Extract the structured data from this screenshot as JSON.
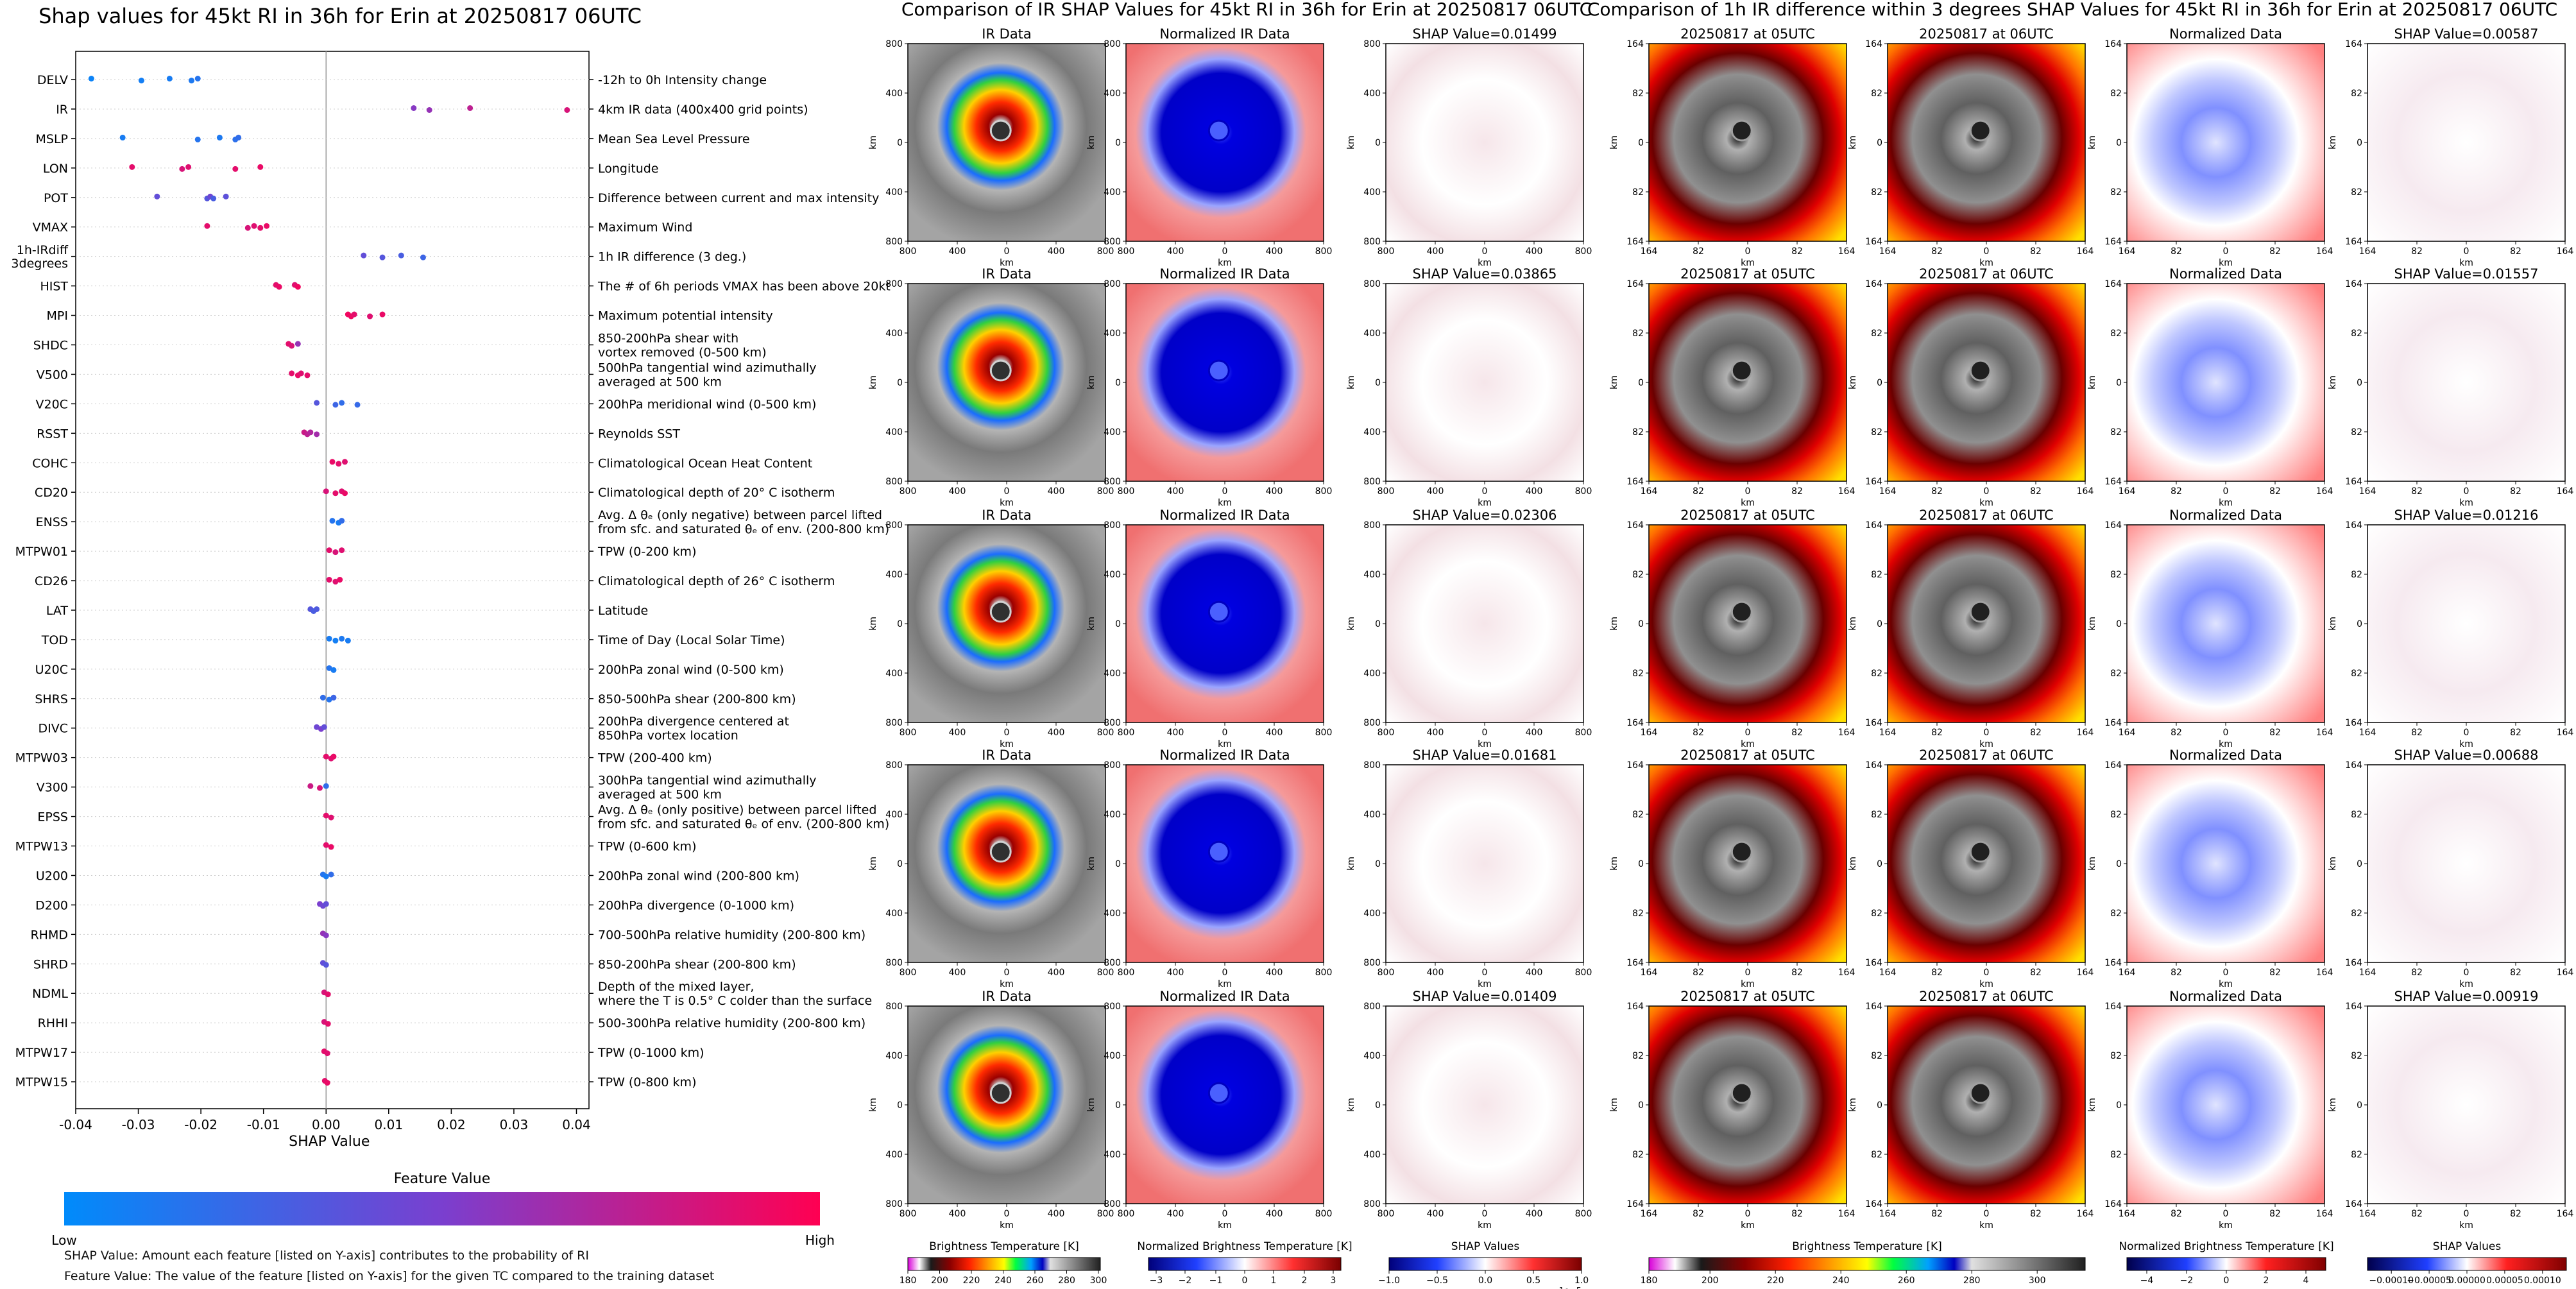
{
  "shap_summary": {
    "title": "Shap values for 45kt RI in 36h for Erin at 20250817 06UTC",
    "xlabel": "SHAP Value",
    "x_ticks": [
      "-0.04",
      "-0.03",
      "-0.02",
      "-0.01",
      "0.00",
      "0.01",
      "0.02",
      "0.03",
      "0.04"
    ],
    "xlim": [
      -0.04,
      0.042
    ],
    "colorbar": {
      "title": "Feature Value",
      "low_label": "Low",
      "high_label": "High",
      "low_color": "#008bfb",
      "high_color": "#ff0052"
    },
    "notes": [
      "SHAP Value: Amount each feature [listed on Y-axis] contributes to the probability of RI",
      "Feature Value: The value of the feature [listed on Y-axis] for the given TC compared to the training dataset"
    ]
  },
  "chart_data": {
    "type": "scatter",
    "title": "Shap values for 45kt RI in 36h for Erin at 20250817 06UTC",
    "xlabel": "SHAP Value",
    "xlim": [
      -0.04,
      0.042
    ],
    "features": [
      {
        "name": "DELV",
        "desc": [
          "-12h to 0h Intensity change"
        ],
        "x": [
          -0.0375,
          -0.0295,
          -0.025,
          -0.0215,
          -0.0205
        ],
        "fv": [
          0.05,
          0.08,
          0.1,
          0.12,
          0.15
        ]
      },
      {
        "name": "IR",
        "desc": [
          "4km IR data (400x400 grid points)"
        ],
        "x": [
          0.014,
          0.0165,
          0.023,
          0.0385
        ],
        "fv": [
          0.55,
          0.6,
          0.75,
          0.85
        ]
      },
      {
        "name": "MSLP",
        "desc": [
          "Mean Sea Level Pressure"
        ],
        "x": [
          -0.0325,
          -0.0205,
          -0.017,
          -0.0145,
          -0.014
        ],
        "fv": [
          0.1,
          0.15,
          0.12,
          0.18,
          0.2
        ]
      },
      {
        "name": "LON",
        "desc": [
          "Longitude"
        ],
        "x": [
          -0.031,
          -0.023,
          -0.022,
          -0.0145,
          -0.0105
        ],
        "fv": [
          0.9,
          0.85,
          0.88,
          0.9,
          0.92
        ]
      },
      {
        "name": "POT",
        "desc": [
          "Difference between current and max intensity"
        ],
        "x": [
          -0.027,
          -0.019,
          -0.0185,
          -0.018,
          -0.016
        ],
        "fv": [
          0.4,
          0.35,
          0.45,
          0.3,
          0.38
        ]
      },
      {
        "name": "VMAX",
        "desc": [
          "Maximum Wind"
        ],
        "x": [
          -0.019,
          -0.0125,
          -0.0115,
          -0.0105,
          -0.0095
        ],
        "fv": [
          0.9,
          0.85,
          0.88,
          0.9,
          0.92
        ]
      },
      {
        "name": "1h-IRdiff\n3degrees",
        "desc": [
          "1h IR difference (3 deg.)"
        ],
        "x": [
          0.006,
          0.009,
          0.012,
          0.0155
        ],
        "fv": [
          0.4,
          0.35,
          0.3,
          0.25
        ]
      },
      {
        "name": "HIST",
        "desc": [
          "The # of 6h periods VMAX has been above 20kt"
        ],
        "x": [
          -0.008,
          -0.0075,
          -0.005,
          -0.0045
        ],
        "fv": [
          0.9,
          0.92,
          0.88,
          0.95
        ]
      },
      {
        "name": "MPI",
        "desc": [
          "Maximum potential intensity"
        ],
        "x": [
          0.0035,
          0.004,
          0.0045,
          0.007,
          0.009
        ],
        "fv": [
          0.95,
          0.93,
          0.9,
          0.88,
          0.92
        ]
      },
      {
        "name": "SHDC",
        "desc": [
          "850-200hPa shear with",
          "vortex removed (0-500 km)"
        ],
        "x": [
          -0.006,
          -0.0055,
          -0.0045
        ],
        "fv": [
          0.9,
          0.85,
          0.6
        ]
      },
      {
        "name": "V500",
        "desc": [
          "500hPa tangential wind azimuthally",
          "averaged at 500 km"
        ],
        "x": [
          -0.0055,
          -0.0045,
          -0.004,
          -0.003
        ],
        "fv": [
          0.9,
          0.92,
          0.88,
          0.9
        ]
      },
      {
        "name": "V20C",
        "desc": [
          "200hPa meridional wind (0-500 km)"
        ],
        "x": [
          -0.0015,
          0.0015,
          0.0025,
          0.005
        ],
        "fv": [
          0.35,
          0.25,
          0.2,
          0.22
        ]
      },
      {
        "name": "RSST",
        "desc": [
          "Reynolds SST"
        ],
        "x": [
          -0.0035,
          -0.003,
          -0.0025,
          -0.0015
        ],
        "fv": [
          0.8,
          0.75,
          0.7,
          0.65
        ]
      },
      {
        "name": "COHC",
        "desc": [
          "Climatological Ocean Heat Content"
        ],
        "x": [
          0.001,
          0.002,
          0.003
        ],
        "fv": [
          0.92,
          0.9,
          0.88
        ]
      },
      {
        "name": "CD20",
        "desc": [
          "Climatological depth of 20° C isotherm"
        ],
        "x": [
          0.0,
          0.0015,
          0.0025,
          0.003
        ],
        "fv": [
          0.85,
          0.9,
          0.88,
          0.92
        ]
      },
      {
        "name": "ENSS",
        "desc": [
          "Avg. Δ θₑ (only negative) between parcel lifted",
          "from sfc. and saturated θₑ of env. (200-800 km)"
        ],
        "x": [
          0.001,
          0.002,
          0.0025
        ],
        "fv": [
          0.15,
          0.1,
          0.2
        ]
      },
      {
        "name": "MTPW01",
        "desc": [
          "TPW (0-200 km)"
        ],
        "x": [
          0.0005,
          0.0015,
          0.0025
        ],
        "fv": [
          0.9,
          0.85,
          0.88
        ]
      },
      {
        "name": "CD26",
        "desc": [
          "Climatological depth of 26° C isotherm"
        ],
        "x": [
          0.0005,
          0.0015,
          0.0022
        ],
        "fv": [
          0.9,
          0.88,
          0.92
        ]
      },
      {
        "name": "LAT",
        "desc": [
          "Latitude"
        ],
        "x": [
          -0.0025,
          -0.002,
          -0.0015
        ],
        "fv": [
          0.35,
          0.3,
          0.32
        ]
      },
      {
        "name": "TOD",
        "desc": [
          "Time of Day (Local Solar Time)"
        ],
        "x": [
          0.0005,
          0.0015,
          0.0025,
          0.0035
        ],
        "fv": [
          0.1,
          0.08,
          0.12,
          0.1
        ]
      },
      {
        "name": "U20C",
        "desc": [
          "200hPa zonal wind (0-500 km)"
        ],
        "x": [
          0.0005,
          0.0012
        ],
        "fv": [
          0.15,
          0.1
        ]
      },
      {
        "name": "SHRS",
        "desc": [
          "850-500hPa shear (200-800 km)"
        ],
        "x": [
          -0.0005,
          0.0005,
          0.0012
        ],
        "fv": [
          0.2,
          0.15,
          0.25
        ]
      },
      {
        "name": "DIVC",
        "desc": [
          "200hPa divergence centered at",
          "850hPa vortex location"
        ],
        "x": [
          -0.0015,
          -0.0008,
          -0.0003
        ],
        "fv": [
          0.45,
          0.5,
          0.4
        ]
      },
      {
        "name": "MTPW03",
        "desc": [
          "TPW (200-400 km)"
        ],
        "x": [
          0.0,
          0.0008,
          0.0012
        ],
        "fv": [
          0.9,
          0.88,
          0.92
        ]
      },
      {
        "name": "V300",
        "desc": [
          "300hPa tangential wind azimuthally",
          "averaged at 500 km"
        ],
        "x": [
          -0.0025,
          -0.001,
          0.0
        ],
        "fv": [
          0.8,
          0.85,
          0.2
        ]
      },
      {
        "name": "EPSS",
        "desc": [
          "Avg. Δ θₑ (only positive) between parcel lifted",
          "from sfc. and saturated θₑ of env. (200-800 km)"
        ],
        "x": [
          0.0,
          0.0008
        ],
        "fv": [
          0.9,
          0.88
        ]
      },
      {
        "name": "MTPW13",
        "desc": [
          "TPW (0-600 km)"
        ],
        "x": [
          0.0,
          0.0008
        ],
        "fv": [
          0.9,
          0.92
        ]
      },
      {
        "name": "U200",
        "desc": [
          "200hPa zonal wind (200-800 km)"
        ],
        "x": [
          -0.0005,
          0.0,
          0.0008
        ],
        "fv": [
          0.15,
          0.1,
          0.2
        ]
      },
      {
        "name": "D200",
        "desc": [
          "200hPa divergence (0-1000 km)"
        ],
        "x": [
          -0.001,
          -0.0005,
          0.0
        ],
        "fv": [
          0.5,
          0.45,
          0.4
        ]
      },
      {
        "name": "RHMD",
        "desc": [
          "700-500hPa relative humidity (200-800 km)"
        ],
        "x": [
          -0.0005,
          0.0
        ],
        "fv": [
          0.6,
          0.55
        ]
      },
      {
        "name": "SHRD",
        "desc": [
          "850-200hPa shear (200-800 km)"
        ],
        "x": [
          -0.0005,
          0.0
        ],
        "fv": [
          0.4,
          0.35
        ]
      },
      {
        "name": "NDML",
        "desc": [
          "Depth of the mixed layer,",
          "where the T is 0.5° C colder than the surface"
        ],
        "x": [
          -0.0003,
          0.0003
        ],
        "fv": [
          0.85,
          0.9
        ]
      },
      {
        "name": "RHHI",
        "desc": [
          "500-300hPa relative humidity (200-800 km)"
        ],
        "x": [
          -0.0003,
          0.0003
        ],
        "fv": [
          0.85,
          0.9
        ]
      },
      {
        "name": "MTPW17",
        "desc": [
          "TPW (0-1000 km)"
        ],
        "x": [
          -0.0003,
          0.0002
        ],
        "fv": [
          0.9,
          0.88
        ]
      },
      {
        "name": "MTPW15",
        "desc": [
          "TPW (0-800 km)"
        ],
        "x": [
          -0.0002,
          0.0002
        ],
        "fv": [
          0.9,
          0.92
        ]
      }
    ]
  },
  "ir_panel": {
    "title": "Comparison of IR SHAP Values for 45kt RI in 36h for Erin at 20250817 06UTC",
    "column_titles": [
      "IR Data",
      "Normalized IR Data"
    ],
    "shap_titles": [
      "SHAP Value=0.01499",
      "SHAP Value=0.03865",
      "SHAP Value=0.02306",
      "SHAP Value=0.01681",
      "SHAP Value=0.01409"
    ],
    "axis_label": "km",
    "x_ticks": [
      "800",
      "400",
      "0",
      "400",
      "800"
    ],
    "y_ticks": [
      "800",
      "400",
      "0",
      "400",
      "800"
    ],
    "colorbars": [
      {
        "label": "Brightness Temperature [K]",
        "ticks": [
          "180",
          "200",
          "220",
          "240",
          "260",
          "280",
          "300"
        ]
      },
      {
        "label": "Normalized Brightness Temperature [K]",
        "ticks": [
          "−3",
          "−2",
          "−1",
          "0",
          "1",
          "2",
          "3"
        ]
      },
      {
        "label": "SHAP Values",
        "ticks": [
          "−1.0",
          "−0.5",
          "0.0",
          "0.5",
          "1.0"
        ],
        "multiplier": "1e−5"
      }
    ]
  },
  "diff_panel": {
    "title": "Comparison of 1h IR difference within 3 degrees SHAP Values for 45kt RI in 36h for Erin at 20250817 06UTC",
    "column_titles": [
      "20250817 at 05UTC",
      "20250817 at 06UTC",
      "Normalized Data"
    ],
    "shap_titles": [
      "SHAP Value=0.00587",
      "SHAP Value=0.01557",
      "SHAP Value=0.01216",
      "SHAP Value=0.00688",
      "SHAP Value=0.00919"
    ],
    "axis_label": "km",
    "x_ticks": [
      "164",
      "82",
      "0",
      "82",
      "164"
    ],
    "y_ticks": [
      "164",
      "82",
      "0",
      "82",
      "164"
    ],
    "colorbars": [
      {
        "label": "Brightness Temperature [K]",
        "ticks": [
          "180",
          "200",
          "220",
          "240",
          "260",
          "280",
          "300"
        ]
      },
      {
        "label": "Normalized Brightness Temperature [K]",
        "ticks": [
          "−4",
          "−2",
          "0",
          "2",
          "4"
        ]
      },
      {
        "label": "SHAP Values",
        "ticks": [
          "−0.00010",
          "−0.00005",
          "0.00000",
          "0.00005",
          "0.00010"
        ]
      }
    ]
  }
}
